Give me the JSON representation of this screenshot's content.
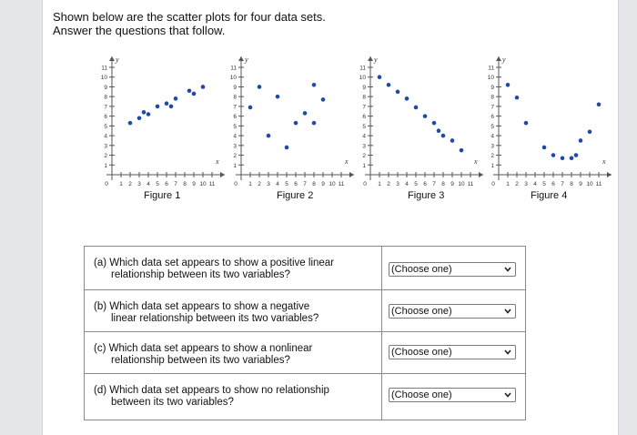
{
  "intro": {
    "line1": "Shown below are the scatter plots for four data sets.",
    "line2": "Answer the questions that follow."
  },
  "chart_data": [
    {
      "type": "scatter",
      "title": "Figure 1",
      "xlabel": "x",
      "ylabel": "y",
      "xlim": [
        0,
        11
      ],
      "ylim": [
        0,
        11
      ],
      "x_ticks": [
        "1",
        "2",
        "3",
        "4",
        "5",
        "6",
        "7",
        "8",
        "9",
        "10",
        "11"
      ],
      "y_ticks": [
        "1",
        "2",
        "3",
        "4",
        "5",
        "6",
        "7",
        "8",
        "9",
        "10",
        "11"
      ],
      "points": [
        [
          2,
          5.3
        ],
        [
          3,
          5.8
        ],
        [
          3.5,
          6.4
        ],
        [
          4,
          6.2
        ],
        [
          5,
          7
        ],
        [
          6,
          7.3
        ],
        [
          6.5,
          7
        ],
        [
          7,
          7.8
        ],
        [
          8.5,
          8.6
        ],
        [
          9,
          8.3
        ],
        [
          10,
          9
        ]
      ]
    },
    {
      "type": "scatter",
      "title": "Figure 2",
      "xlabel": "x",
      "ylabel": "y",
      "xlim": [
        0,
        11
      ],
      "ylim": [
        0,
        11
      ],
      "x_ticks": [
        "1",
        "2",
        "3",
        "4",
        "5",
        "6",
        "7",
        "8",
        "9",
        "10",
        "11"
      ],
      "y_ticks": [
        "1",
        "2",
        "3",
        "4",
        "5",
        "6",
        "7",
        "8",
        "9",
        "10",
        "11"
      ],
      "points": [
        [
          1,
          6.9
        ],
        [
          2,
          9
        ],
        [
          3,
          4
        ],
        [
          4,
          8
        ],
        [
          5,
          2.8
        ],
        [
          6,
          5.3
        ],
        [
          7,
          6.3
        ],
        [
          8,
          9.2
        ],
        [
          8,
          5.3
        ],
        [
          9,
          7.7
        ]
      ]
    },
    {
      "type": "scatter",
      "title": "Figure 3",
      "xlabel": "x",
      "ylabel": "y",
      "xlim": [
        0,
        11
      ],
      "ylim": [
        0,
        11
      ],
      "x_ticks": [
        "1",
        "2",
        "3",
        "4",
        "5",
        "6",
        "7",
        "8",
        "9",
        "10",
        "11"
      ],
      "y_ticks": [
        "1",
        "2",
        "3",
        "4",
        "5",
        "6",
        "7",
        "8",
        "9",
        "10",
        "11"
      ],
      "points": [
        [
          1,
          10
        ],
        [
          2,
          9.2
        ],
        [
          3,
          8.5
        ],
        [
          4,
          7.8
        ],
        [
          5,
          6.9
        ],
        [
          6,
          6
        ],
        [
          7,
          5.3
        ],
        [
          7.5,
          4.5
        ],
        [
          8,
          4
        ],
        [
          9,
          3.5
        ],
        [
          10,
          2.5
        ]
      ]
    },
    {
      "type": "scatter",
      "title": "Figure 4",
      "xlabel": "x",
      "ylabel": "y",
      "xlim": [
        0,
        11
      ],
      "ylim": [
        0,
        11
      ],
      "x_ticks": [
        "1",
        "2",
        "3",
        "4",
        "5",
        "6",
        "7",
        "8",
        "9",
        "10",
        "11"
      ],
      "y_ticks": [
        "1",
        "2",
        "3",
        "4",
        "5",
        "6",
        "7",
        "8",
        "9",
        "10",
        "11"
      ],
      "points": [
        [
          1,
          9.2
        ],
        [
          2,
          7.9
        ],
        [
          3,
          5.3
        ],
        [
          5,
          2.8
        ],
        [
          6,
          2
        ],
        [
          7,
          1.7
        ],
        [
          8,
          1.7
        ],
        [
          8.5,
          2
        ],
        [
          9,
          3.5
        ],
        [
          10,
          4.4
        ],
        [
          11,
          7.2
        ]
      ]
    }
  ],
  "questions": [
    {
      "letter": "(a)",
      "line1": "Which data set appears to show a positive linear",
      "line2": "relationship between its two variables?",
      "select": "(Choose one)"
    },
    {
      "letter": "(b)",
      "line1": "Which data set appears to show a negative",
      "line2": "linear relationship between its two variables?",
      "select": "(Choose one)"
    },
    {
      "letter": "(c)",
      "line1": "Which data set appears to show a nonlinear",
      "line2": "relationship between its two variables?",
      "select": "(Choose one)"
    },
    {
      "letter": "(d)",
      "line1": "Which data set appears to show no relationship",
      "line2": "between its two variables?",
      "select": "(Choose one)"
    }
  ]
}
